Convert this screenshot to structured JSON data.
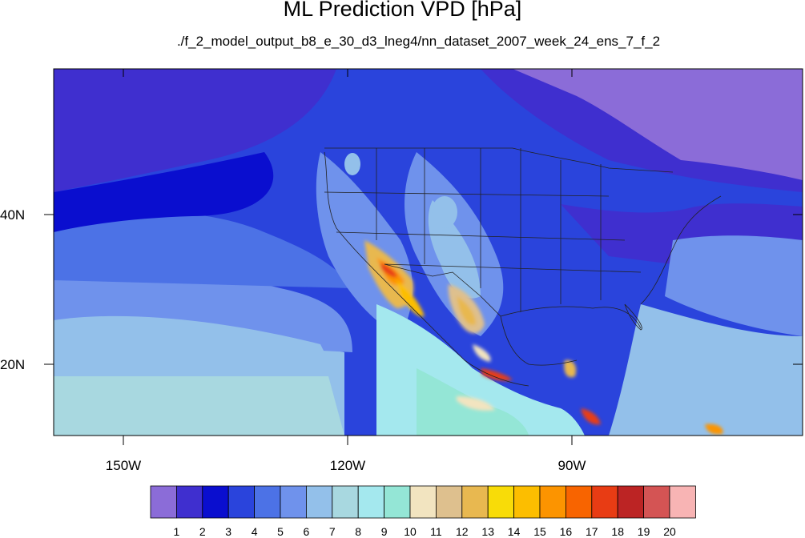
{
  "title": "ML Prediction VPD [hPa]",
  "subtitle": "./f_2_model_output_b8_e_30_d3_lneg4/nn_dataset_2007_week_24_ens_7_f_2",
  "lat_labels": [
    "40N",
    "20N"
  ],
  "lon_labels": [
    "150W",
    "120W",
    "90W"
  ],
  "colorbar": {
    "labels": [
      "1",
      "2",
      "3",
      "4",
      "5",
      "6",
      "7",
      "8",
      "9",
      "10",
      "11",
      "12",
      "13",
      "14",
      "15",
      "16",
      "17",
      "18",
      "19",
      "20"
    ],
    "colors": [
      "#8b6cd8",
      "#3f2fcf",
      "#0a0ecf",
      "#2a44dc",
      "#4c72e6",
      "#6f92ec",
      "#93c0ea",
      "#a8d8e0",
      "#a4e8ee",
      "#94e6d6",
      "#f2e4c0",
      "#dec08e",
      "#e8b850",
      "#f8dc08",
      "#fcbe00",
      "#fc9400",
      "#f86400",
      "#e83c14",
      "#bc2424",
      "#d45454",
      "#f8b4b4"
    ]
  },
  "map_colors": {
    "background": "#2a44dc",
    "north_deep": "#3f2fcf",
    "band_mid": "#4c72e6",
    "band_light": "#6f92ec",
    "south_pale": "#93c0ea",
    "canada_purple": "#8b6cd8",
    "plains_light": "#93c0ea",
    "mexico_cyan": "#a4e8ee",
    "hot_core": "#e83c14"
  }
}
